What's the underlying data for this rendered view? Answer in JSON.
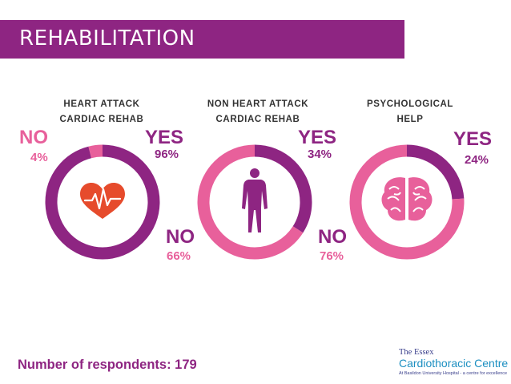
{
  "header": {
    "title": "REHABILITATION"
  },
  "colors": {
    "magenta": "#8e2582",
    "pink": "#e8609b",
    "logo_navy": "#3a3f8c",
    "logo_blue": "#1c8fc1"
  },
  "icons": [
    "heart-ecg-icon",
    "human-body-icon",
    "brain-icon"
  ],
  "chart_data": [
    {
      "type": "pie",
      "title": "HEART ATTACK\nCARDIAC REHAB",
      "categories": [
        "YES",
        "NO"
      ],
      "values": [
        96,
        4
      ],
      "colors": [
        "#8e2582",
        "#e8609b"
      ],
      "labels": {
        "yes_word": "YES",
        "yes_pct": "96%",
        "no_word": "NO",
        "no_pct": "4%"
      }
    },
    {
      "type": "pie",
      "title": "NON HEART ATTACK\nCARDIAC REHAB",
      "categories": [
        "YES",
        "NO"
      ],
      "values": [
        34,
        66
      ],
      "colors": [
        "#8e2582",
        "#e8609b"
      ],
      "labels": {
        "yes_word": "YES",
        "yes_pct": "34%",
        "no_word": "NO",
        "no_pct": "66%"
      }
    },
    {
      "type": "pie",
      "title": "PSYCHOLOGICAL\nHELP",
      "categories": [
        "YES",
        "NO"
      ],
      "values": [
        24,
        76
      ],
      "colors": [
        "#8e2582",
        "#e8609b"
      ],
      "labels": {
        "yes_word": "YES",
        "yes_pct": "24%",
        "no_word": "NO",
        "no_pct": "76%"
      }
    }
  ],
  "footer": {
    "respondents": "Number of respondents: 179"
  },
  "logo": {
    "line1": "The Essex",
    "line2": "Cardiothoracic Centre",
    "line3": "At Basildon University Hospital - a centre for excellence"
  }
}
